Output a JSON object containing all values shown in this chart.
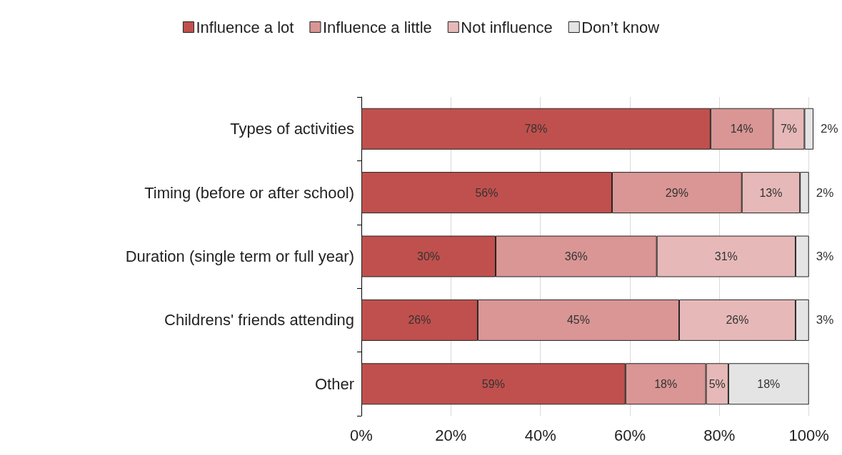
{
  "chart_data": {
    "type": "bar",
    "orientation": "horizontal",
    "stacked": true,
    "categories": [
      "Types of activities",
      "Timing (before or after school)",
      "Duration (single term or full year)",
      "Childrens' friends attending",
      "Other"
    ],
    "series": [
      {
        "name": "Influence a lot",
        "color": "#c0504d",
        "values": [
          78,
          56,
          30,
          26,
          59
        ],
        "value_labels": [
          "78%",
          "56%",
          "30%",
          "26%",
          "59%"
        ]
      },
      {
        "name": "Influence a little",
        "color": "#d99694",
        "values": [
          14,
          29,
          36,
          45,
          18
        ],
        "value_labels": [
          "14%",
          "29%",
          "36%",
          "45%",
          "18%"
        ]
      },
      {
        "name": "Not influence",
        "color": "#e6b9b8",
        "values": [
          7,
          13,
          31,
          26,
          5
        ],
        "value_labels": [
          "7%",
          "13%",
          "31%",
          "26%",
          "5%"
        ]
      },
      {
        "name": "Don’t know",
        "color": "#e4e4e4",
        "values": [
          2,
          2,
          3,
          3,
          18
        ],
        "value_labels": [
          "2%",
          "2%",
          "3%",
          "3%",
          "18%"
        ]
      }
    ],
    "xlim": [
      0,
      101
    ],
    "xticks": [
      {
        "value": 0,
        "label": "0%"
      },
      {
        "value": 20,
        "label": "20%"
      },
      {
        "value": 40,
        "label": "40%"
      },
      {
        "value": 60,
        "label": "60%"
      },
      {
        "value": 80,
        "label": "80%"
      },
      {
        "value": 100,
        "label": "100%"
      }
    ],
    "grid": "x",
    "legend": "top"
  }
}
